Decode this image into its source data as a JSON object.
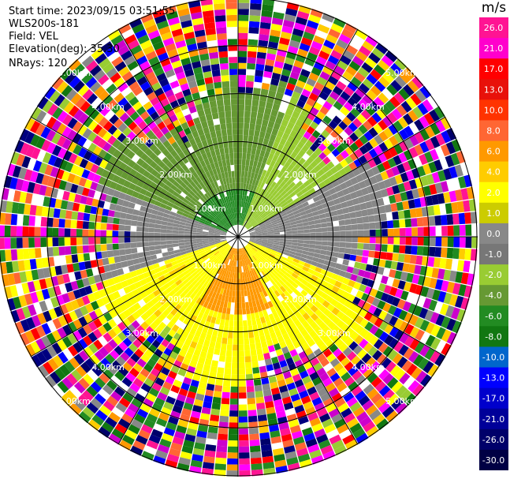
{
  "header": {
    "start_time": "Start time: 2023/09/15 03:51:55",
    "instrument": "WLS200s-181",
    "field": "Field: VEL",
    "elevation": "Elevation(deg): 35.30",
    "nrays": "NRays: 120"
  },
  "chart_data": {
    "type": "heatmap",
    "projection": "polar PPI",
    "n_rays": 120,
    "range_rings_km": [
      1.0,
      2.0,
      3.0,
      4.0,
      5.0
    ],
    "ring_labels": [
      "1.00km",
      "2.00km",
      "3.00km",
      "4.00km",
      "5.00km"
    ],
    "max_range_km": 5.0,
    "colorbar": {
      "unit": "m/s",
      "tick_labels": [
        "26.0",
        "21.0",
        "17.0",
        "13.0",
        "10.0",
        "8.0",
        "6.0",
        "4.0",
        "2.0",
        "1.0",
        "0.0",
        "-1.0",
        "-2.0",
        "-4.0",
        "-6.0",
        "-8.0",
        "-10.0",
        "-13.0",
        "-17.0",
        "-21.0",
        "-26.0",
        "-30.0"
      ],
      "colors": [
        "#ff1493",
        "#ff00cc",
        "#ff0000",
        "#e8110a",
        "#ff3300",
        "#ff6633",
        "#ff9900",
        "#ffcc00",
        "#ffff00",
        "#cccc00",
        "#888888",
        "#777777",
        "#99cc33",
        "#669933",
        "#228b22",
        "#117711",
        "#0066cc",
        "#0000ff",
        "#0000cc",
        "#000099",
        "#00006a",
        "#000044"
      ]
    },
    "sectors_note_values_ms": {
      "north": -4.0,
      "north_east": -2.0,
      "east": 0.0,
      "south": 4.0,
      "south_center": 6.0,
      "west": 0.0,
      "north_west": -4.0
    }
  }
}
